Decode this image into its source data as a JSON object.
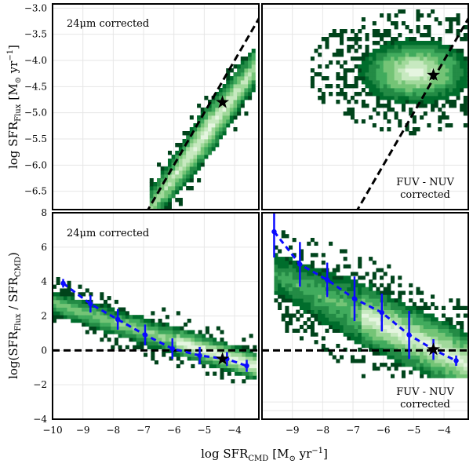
{
  "figure": {
    "xlabel": "log SFR",
    "xlabel_sub": "CMD",
    "xlabel_units": "[M",
    "xlabel_units_sub": "⊙",
    "xlabel_units_end": " yr",
    "xlabel_units_exp": "−1",
    "xlabel_units_close": "]",
    "ylabel_top": "log SFR",
    "ylabel_top_sub": "Flux",
    "ylabel_top_units": "[M",
    "ylabel_top_units_sub": "⊙",
    "ylabel_top_units_end": " yr",
    "ylabel_top_units_exp": "−1",
    "ylabel_top_units_close": "]",
    "ylabel_bottom_a": "log(SFR",
    "ylabel_bottom_sub1": "Flux",
    "ylabel_bottom_mid": " / SFR",
    "ylabel_bottom_sub2": "CMD",
    "ylabel_bottom_close": ")"
  },
  "chart_data": [
    {
      "panel": "top-left",
      "type": "heatmap",
      "annotation": "24μm corrected",
      "xlim": [
        -10,
        -3.2
      ],
      "ylim": [
        -6.85,
        -2.92
      ],
      "yticks": [
        -6.5,
        -6.0,
        -5.5,
        -5.0,
        -4.5,
        -4.0,
        -3.5,
        -3.0
      ],
      "ytick_labels": [
        "−6.5",
        "−6.0",
        "−5.5",
        "−5.0",
        "−4.5",
        "−4.0",
        "−3.5",
        "−3.0"
      ],
      "one_to_one_line": true,
      "star": {
        "x": -4.4,
        "y": -4.8
      },
      "density": {
        "center": [
          -4.9,
          -5.35
        ],
        "major": [
          0.0,
          -6.6,
          -3.9
        ],
        "scatter": [
          -6.6,
          -3.5,
          -6.85,
          -3.7
        ]
      }
    },
    {
      "panel": "top-right",
      "type": "heatmap",
      "annotation": "FUV - NUV",
      "annotation2": "corrected",
      "xlim": [
        -10,
        -3.2
      ],
      "ylim": [
        -6.85,
        -2.92
      ],
      "one_to_one_line": true,
      "star": {
        "x": -4.35,
        "y": -4.28
      },
      "density": {
        "center": [
          -5.0,
          -4.2
        ],
        "scatter": [
          -9.6,
          -3.3,
          -5.4,
          -2.95
        ]
      }
    },
    {
      "panel": "bottom-left",
      "type": "heatmap",
      "annotation": "24μm corrected",
      "xlim": [
        -10,
        -3.2
      ],
      "ylim": [
        -4,
        8
      ],
      "xticks": [
        -10,
        -9,
        -8,
        -7,
        -6,
        -5,
        -4
      ],
      "xtick_labels": [
        "−10",
        "−9",
        "−8",
        "−7",
        "−6",
        "−5",
        "−4"
      ],
      "yticks": [
        -4,
        -2,
        0,
        2,
        4,
        6,
        8
      ],
      "ytick_labels": [
        "−4",
        "−2",
        "0",
        "2",
        "4",
        "6",
        "8"
      ],
      "zero_line": true,
      "star": {
        "x": -4.4,
        "y": -0.5
      },
      "binned_medians": {
        "x": [
          -9.65,
          -8.75,
          -7.85,
          -6.95,
          -6.05,
          -5.15,
          -4.25,
          -3.6
        ],
        "y": [
          3.9,
          2.7,
          1.8,
          0.9,
          0.1,
          -0.3,
          -0.5,
          -0.9
        ],
        "err": [
          0.25,
          0.5,
          0.6,
          0.6,
          0.6,
          0.5,
          0.4,
          0.35
        ]
      }
    },
    {
      "panel": "bottom-right",
      "type": "heatmap",
      "annotation": "FUV - NUV",
      "annotation2": "corrected",
      "xlim": [
        -10,
        -3.2
      ],
      "ylim": [
        -4,
        8
      ],
      "xticks": [
        -10,
        -9,
        -8,
        -7,
        -6,
        -5,
        -4
      ],
      "xtick_labels": [
        "",
        "−9",
        "−8",
        "−7",
        "−6",
        "−5",
        "−4"
      ],
      "zero_line": true,
      "star": {
        "x": -4.35,
        "y": 0.05
      },
      "binned_medians": {
        "x": [
          -9.6,
          -8.75,
          -7.85,
          -6.95,
          -6.05,
          -5.15,
          -4.35,
          -3.6
        ],
        "y": [
          6.9,
          5.0,
          4.1,
          3.0,
          2.2,
          0.9,
          0.05,
          -0.6
        ],
        "err": [
          1.5,
          1.3,
          1.0,
          1.3,
          1.1,
          1.4,
          0.6,
          0.3
        ]
      }
    }
  ]
}
